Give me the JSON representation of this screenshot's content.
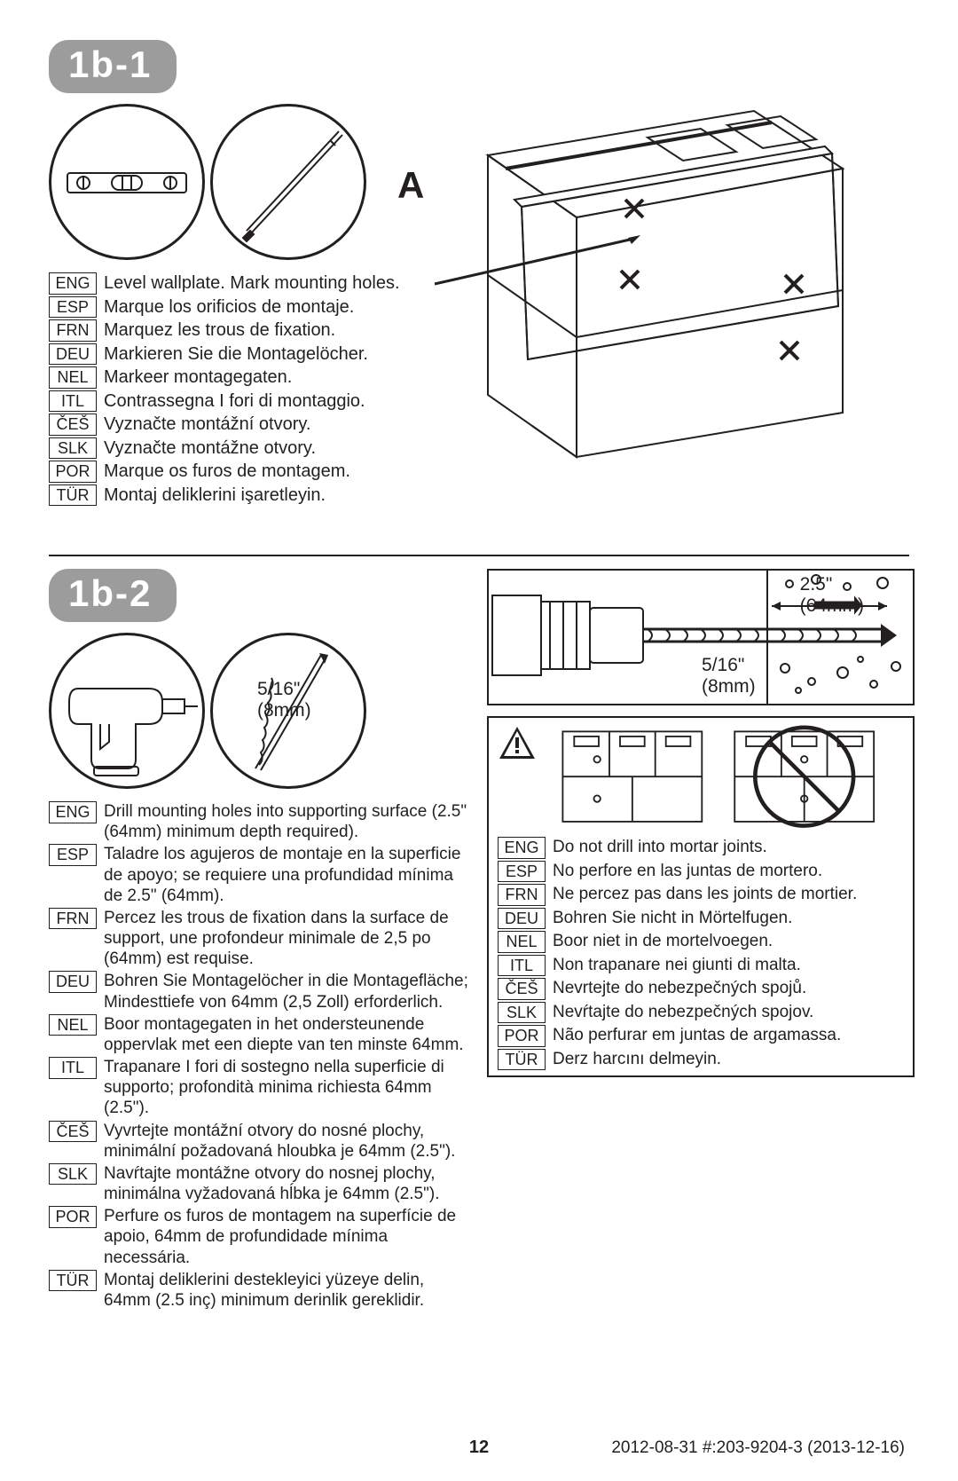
{
  "step1": {
    "badge": "1b-1",
    "labelA": "A",
    "langs": [
      {
        "code": "ENG",
        "text": "Level wallplate.  Mark mounting holes."
      },
      {
        "code": "ESP",
        "text": "Marque los orificios de montaje."
      },
      {
        "code": "FRN",
        "text": "Marquez les trous de fixation."
      },
      {
        "code": "DEU",
        "text": "Markieren Sie die Montagelöcher."
      },
      {
        "code": "NEL",
        "text": "Markeer montagegaten."
      },
      {
        "code": "ITL",
        "text": "Contrassegna I fori di montaggio."
      },
      {
        "code": "ČEŠ",
        "text": "Vyznačte montážní otvory."
      },
      {
        "code": "SLK",
        "text": "Vyznačte montážne otvory."
      },
      {
        "code": "POR",
        "text": "Marque os furos de montagem."
      },
      {
        "code": "TÜR",
        "text": "Montaj deliklerini işaretleyin."
      }
    ]
  },
  "step2": {
    "badge": "1b-2",
    "bit_size_inch": "5/16\"",
    "bit_size_mm": "(8mm)",
    "depth_inch": "2.5\"",
    "depth_mm": "(64mm)",
    "drill_size_inch": "5/16\"",
    "drill_size_mm": "(8mm)",
    "langs": [
      {
        "code": "ENG",
        "text": "Drill mounting holes into supporting surface (2.5\" (64mm) minimum depth required)."
      },
      {
        "code": "ESP",
        "text": "Taladre los agujeros de montaje en la superficie de apoyo; se requiere una profundidad mínima de 2.5\" (64mm)."
      },
      {
        "code": "FRN",
        "text": "Percez les trous de fixation dans la surface de support, une profondeur minimale de 2,5 po (64mm) est requise."
      },
      {
        "code": "DEU",
        "text": "Bohren Sie Montagelöcher in die Montagefläche; Mindesttiefe von 64mm (2,5 Zoll) erforderlich."
      },
      {
        "code": "NEL",
        "text": "Boor montagegaten in het ondersteunende oppervlak met een diepte van ten minste 64mm."
      },
      {
        "code": "ITL",
        "text": "Trapanare I fori di sostegno nella superficie di supporto; profondità minima richiesta 64mm (2.5\")."
      },
      {
        "code": "ČEŠ",
        "text": "Vyvrtejte montážní otvory do nosné plochy, minimální požadovaná hloubka je 64mm (2.5\")."
      },
      {
        "code": "SLK",
        "text": "Navŕtajte montážne otvory do nosnej plochy, minimálna vyžadovaná hĺbka je 64mm (2.5\")."
      },
      {
        "code": "POR",
        "text": "Perfure os furos de montagem na superfície de apoio, 64mm de profundidade mínima necessária."
      },
      {
        "code": "TÜR",
        "text": "Montaj deliklerini destekleyici yüzeye delin, 64mm (2.5 inç) minimum derinlik gereklidir."
      }
    ],
    "warn_langs": [
      {
        "code": "ENG",
        "text": "Do not drill into mortar joints."
      },
      {
        "code": "ESP",
        "text": "No perfore en las juntas de mortero."
      },
      {
        "code": "FRN",
        "text": "Ne percez pas dans les joints de mortier."
      },
      {
        "code": "DEU",
        "text": "Bohren Sie nicht in Mörtelfugen."
      },
      {
        "code": "NEL",
        "text": "Boor niet in de mortelvoegen."
      },
      {
        "code": "ITL",
        "text": "Non trapanare nei giunti di malta."
      },
      {
        "code": "ČEŠ",
        "text": "Nevrtejte do nebezpečných spojů."
      },
      {
        "code": "SLK",
        "text": "Nevŕtajte do nebezpečných spojov."
      },
      {
        "code": "POR",
        "text": "Não perfurar em juntas de argamassa."
      },
      {
        "code": "TÜR",
        "text": "Derz harcını delmeyin."
      }
    ]
  },
  "footer": {
    "page": "12",
    "right": "2012-08-31   #:203-9204-3  (2013-12-16)"
  },
  "colors": {
    "badge_bg": "#9c9c9c",
    "text": "#231f20"
  }
}
